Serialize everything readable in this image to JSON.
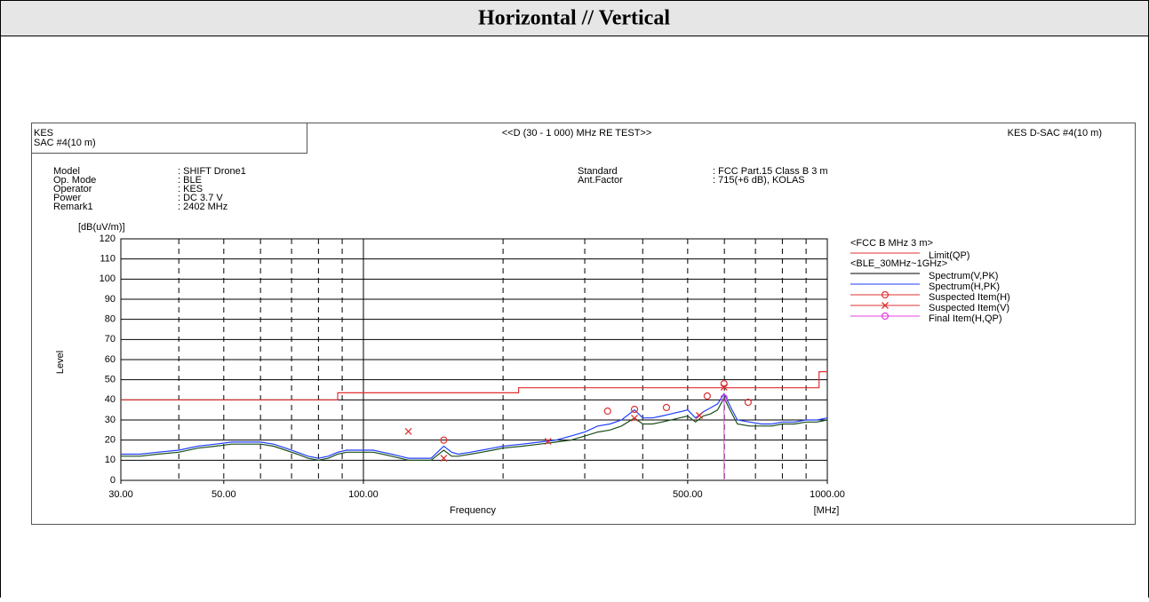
{
  "header": {
    "title": "Horizontal // Vertical"
  },
  "chart_data": {
    "type": "line",
    "frame": {
      "left": [
        "KES",
        "SAC #4(10 m)"
      ],
      "center": "<<D (30 - 1 000) MHz RE TEST>>",
      "right": "KES D-SAC #4(10 m)"
    },
    "info_left": [
      {
        "label": "Model",
        "value": ": SHIFT Drone1"
      },
      {
        "label": "Op. Mode",
        "value": ": BLE"
      },
      {
        "label": "Operator",
        "value": ": KES"
      },
      {
        "label": "Power",
        "value": ": DC 3.7 V"
      },
      {
        "label": "Remark1",
        "value": ": 2402 MHz"
      }
    ],
    "info_right": [
      {
        "label": "Standard",
        "value": ": FCC Part.15 Class B 3 m"
      },
      {
        "label": "Ant.Factor",
        "value": ": 715(+6 dB), KOLAS"
      }
    ],
    "ylabel": "Level",
    "yunit": "[dB(uV/m)]",
    "xlabel": "Frequency",
    "xunit": "[MHz]",
    "xscale": "log",
    "xlim": [
      30,
      1000
    ],
    "ylim": [
      0,
      120
    ],
    "yticks": [
      0,
      10,
      20,
      30,
      40,
      50,
      60,
      70,
      80,
      90,
      100,
      110,
      120
    ],
    "xticks": [
      {
        "value": 30,
        "label": "30.00"
      },
      {
        "value": 50,
        "label": "50.00"
      },
      {
        "value": 100,
        "label": "100.00"
      },
      {
        "value": 500,
        "label": "500.00"
      },
      {
        "value": 1000,
        "label": "1000.00"
      }
    ],
    "xgrid": [
      40,
      50,
      60,
      70,
      80,
      90,
      100,
      200,
      300,
      400,
      500,
      600,
      700,
      800,
      900
    ],
    "grid": true,
    "groups": [
      {
        "title": "<FCC B MHz 3 m>",
        "series": [
          {
            "name": "Limit(QP)",
            "color": "#e03030",
            "style": "line",
            "x": [
              30,
              88,
              88,
              216,
              216,
              960,
              960,
              1000
            ],
            "values": [
              40,
              40,
              43.5,
              43.5,
              46,
              46,
              54,
              54
            ]
          }
        ]
      },
      {
        "title": "<BLE_30MHz~1GHz>",
        "series": [
          {
            "name": "Spectrum(V,PK)",
            "color": "#1a4d1a",
            "legend_color": "#000000",
            "style": "line",
            "x": [
              30,
              33,
              36,
              40,
              44,
              48,
              52,
              56,
              60,
              64,
              68,
              72,
              76,
              80,
              84,
              88,
              92,
              96,
              100,
              105,
              110,
              115,
              120,
              125,
              130,
              140,
              149,
              155,
              160,
              170,
              180,
              190,
              200,
              220,
              240,
              260,
              280,
              300,
              320,
              340,
              360,
              384,
              400,
              420,
              440,
              460,
              480,
              500,
              520,
              540,
              560,
              580,
              599,
              620,
              640,
              680,
              720,
              760,
              800,
              850,
              900,
              950,
              1000
            ],
            "values": [
              12,
              12,
              13,
              14,
              16,
              17,
              18,
              18,
              18,
              17,
              15,
              13,
              11,
              10,
              11,
              13,
              14,
              14,
              14,
              14,
              13,
              12,
              11,
              10,
              10,
              10,
              15,
              12,
              12,
              13,
              14,
              15,
              16,
              17,
              18,
              19,
              20,
              22,
              24,
              25,
              27,
              31,
              28,
              28,
              29,
              30,
              31,
              32,
              29,
              32,
              33,
              35,
              41,
              34,
              28,
              27,
              27,
              27,
              28,
              28,
              29,
              29,
              30
            ]
          },
          {
            "name": "Spectrum(H,PK)",
            "color": "#1f3fff",
            "style": "line",
            "x": [
              30,
              33,
              36,
              40,
              44,
              48,
              52,
              56,
              60,
              64,
              68,
              72,
              76,
              80,
              84,
              88,
              92,
              96,
              100,
              105,
              110,
              115,
              120,
              125,
              130,
              140,
              149,
              155,
              160,
              170,
              180,
              190,
              200,
              220,
              240,
              260,
              280,
              300,
              320,
              340,
              360,
              384,
              400,
              420,
              440,
              460,
              480,
              500,
              520,
              540,
              560,
              580,
              599,
              620,
              640,
              680,
              720,
              760,
              800,
              850,
              900,
              950,
              1000
            ],
            "values": [
              13,
              13,
              14,
              15,
              17,
              18,
              19,
              19,
              19,
              18,
              16,
              14,
              12,
              11,
              12,
              14,
              15,
              15,
              15,
              15,
              14,
              13,
              12,
              11,
              11,
              11,
              17,
              14,
              13,
              14,
              15,
              16,
              17,
              18,
              19,
              20,
              22,
              24,
              27,
              28,
              30,
              35,
              31,
              31,
              32,
              33,
              34,
              35,
              31,
              34,
              36,
              38,
              43,
              36,
              30,
              29,
              28,
              28,
              29,
              29,
              30,
              30,
              31
            ]
          },
          {
            "name": "Suspected Item(H)",
            "color": "#e03030",
            "style": "marker",
            "marker": "circle",
            "x": [
              149,
              336,
              384,
              450,
              551,
              599,
              675
            ],
            "values": [
              20,
              34.4,
              35.3,
              36.2,
              41.9,
              48,
              38.8
            ]
          },
          {
            "name": "Suspected Item(V)",
            "color": "#e03030",
            "style": "marker",
            "marker": "x",
            "x": [
              125,
              149,
              250,
              384,
              530,
              599
            ],
            "values": [
              24.3,
              11,
              19.4,
              30.9,
              32.2,
              46.3
            ]
          },
          {
            "name": "Final Item(H,QP)",
            "color": "#e040e0",
            "style": "marker",
            "marker": "circle",
            "stem": true,
            "x": [
              599
            ],
            "values": [
              41
            ]
          }
        ]
      }
    ]
  }
}
